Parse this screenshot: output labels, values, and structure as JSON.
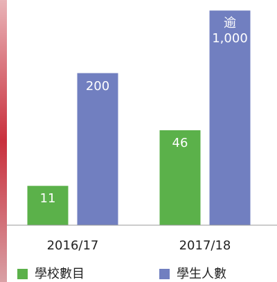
{
  "chart_data": {
    "type": "bar",
    "categories": [
      "2016/17",
      "2017/18"
    ],
    "series": [
      {
        "name": "學校數目",
        "color": "#5bb14a",
        "values": [
          11,
          46
        ]
      },
      {
        "name": "學生人數",
        "color": "#717fc0",
        "values": [
          200,
          1000
        ],
        "value_labels": [
          "200",
          "逾 1,000"
        ]
      }
    ],
    "yscale": "log",
    "ylim": [
      4,
      1200
    ]
  }
}
